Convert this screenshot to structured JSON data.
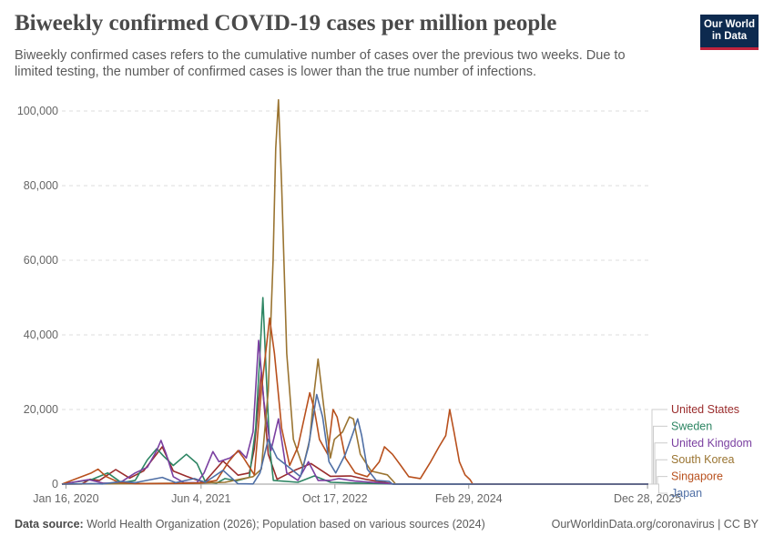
{
  "header": {
    "title": "Biweekly confirmed COVID-19 cases per million people",
    "subtitle": "Biweekly confirmed cases refers to the cumulative number of cases over the previous two weeks. Due to limited testing, the number of confirmed cases is lower than the true number of infections.",
    "logo_line1": "Our World",
    "logo_line2": "in Data"
  },
  "footer": {
    "source_label": "Data source:",
    "source_text": "World Health Organization (2026); Population based on various sources (2024)",
    "right_text": "OurWorldinData.org/coronavirus | CC BY"
  },
  "chart_data": {
    "type": "line",
    "title": "Biweekly confirmed COVID-19 cases per million people",
    "ylim": [
      0,
      100000
    ],
    "y_ticks": [
      0,
      20000,
      40000,
      60000,
      80000,
      100000
    ],
    "y_tick_labels": [
      "0",
      "20,000",
      "40,000",
      "60,000",
      "80,000",
      "100,000"
    ],
    "xlim": [
      "2020-01-01",
      "2025-12-31"
    ],
    "x_ticks": [
      "2020-01-16",
      "2021-06-04",
      "2022-10-17",
      "2024-02-29",
      "2025-12-28"
    ],
    "x_tick_labels": [
      "Jan 16, 2020",
      "Jun 4, 2021",
      "Oct 17, 2022",
      "Feb 29, 2024",
      "Dec 28, 2025"
    ],
    "grid": "horizontal-dashed",
    "legend_placement": "right",
    "series": [
      {
        "name": "United States",
        "color": "#9a2c2c",
        "points": [
          [
            "2020-01-01",
            0
          ],
          [
            "2020-03-15",
            50
          ],
          [
            "2020-04-15",
            1300
          ],
          [
            "2020-05-20",
            1000
          ],
          [
            "2020-07-20",
            3900
          ],
          [
            "2020-09-10",
            1600
          ],
          [
            "2020-11-01",
            3500
          ],
          [
            "2021-01-10",
            10000
          ],
          [
            "2021-02-20",
            3500
          ],
          [
            "2021-04-10",
            2100
          ],
          [
            "2021-06-15",
            400
          ],
          [
            "2021-08-25",
            6200
          ],
          [
            "2021-10-20",
            2400
          ],
          [
            "2021-12-01",
            3000
          ],
          [
            "2021-12-20",
            9500
          ],
          [
            "2022-01-15",
            30000
          ],
          [
            "2022-02-10",
            8000
          ],
          [
            "2022-03-15",
            1300
          ],
          [
            "2022-05-20",
            3700
          ],
          [
            "2022-07-20",
            5500
          ],
          [
            "2022-09-30",
            2100
          ],
          [
            "2022-12-15",
            2200
          ],
          [
            "2023-02-15",
            1200
          ],
          [
            "2023-05-10",
            200
          ],
          [
            "2023-05-24",
            0
          ],
          [
            "2025-12-31",
            0
          ]
        ]
      },
      {
        "name": "Sweden",
        "color": "#2d8563",
        "points": [
          [
            "2020-01-01",
            0
          ],
          [
            "2020-04-20",
            1200
          ],
          [
            "2020-06-20",
            3000
          ],
          [
            "2020-08-10",
            400
          ],
          [
            "2020-10-01",
            1000
          ],
          [
            "2020-11-15",
            6500
          ],
          [
            "2020-12-20",
            9500
          ],
          [
            "2021-01-15",
            7500
          ],
          [
            "2021-02-20",
            5000
          ],
          [
            "2021-04-10",
            8000
          ],
          [
            "2021-05-20",
            5500
          ],
          [
            "2021-06-20",
            600
          ],
          [
            "2021-08-01",
            300
          ],
          [
            "2021-09-01",
            1500
          ],
          [
            "2021-10-15",
            900
          ],
          [
            "2021-12-01",
            1800
          ],
          [
            "2021-12-25",
            15000
          ],
          [
            "2022-01-10",
            35000
          ],
          [
            "2022-01-21",
            50000
          ],
          [
            "2022-02-05",
            25000
          ],
          [
            "2022-02-15",
            10000
          ],
          [
            "2022-03-01",
            1000
          ],
          [
            "2022-06-01",
            500
          ],
          [
            "2022-08-01",
            2200
          ],
          [
            "2022-10-01",
            500
          ],
          [
            "2023-01-01",
            300
          ],
          [
            "2023-06-01",
            0
          ],
          [
            "2025-12-31",
            0
          ]
        ]
      },
      {
        "name": "United Kingdom",
        "color": "#7a3fa0",
        "points": [
          [
            "2020-01-01",
            0
          ],
          [
            "2020-04-10",
            1200
          ],
          [
            "2020-06-01",
            300
          ],
          [
            "2020-08-01",
            200
          ],
          [
            "2020-10-01",
            3000
          ],
          [
            "2020-11-15",
            4500
          ],
          [
            "2020-12-20",
            9000
          ],
          [
            "2021-01-05",
            11700
          ],
          [
            "2021-01-25",
            8000
          ],
          [
            "2021-02-20",
            2000
          ],
          [
            "2021-04-01",
            400
          ],
          [
            "2021-05-20",
            400
          ],
          [
            "2021-06-15",
            3000
          ],
          [
            "2021-07-18",
            8700
          ],
          [
            "2021-08-10",
            6000
          ],
          [
            "2021-09-20",
            7000
          ],
          [
            "2021-10-25",
            9000
          ],
          [
            "2021-11-20",
            7000
          ],
          [
            "2021-12-15",
            14000
          ],
          [
            "2022-01-05",
            38500
          ],
          [
            "2022-01-25",
            22000
          ],
          [
            "2022-02-20",
            9000
          ],
          [
            "2022-03-20",
            17500
          ],
          [
            "2022-04-20",
            3000
          ],
          [
            "2022-06-01",
            1000
          ],
          [
            "2022-07-10",
            6000
          ],
          [
            "2022-08-15",
            1000
          ],
          [
            "2022-09-30",
            1000
          ],
          [
            "2022-11-01",
            1500
          ],
          [
            "2023-01-01",
            800
          ],
          [
            "2023-06-01",
            0
          ],
          [
            "2025-12-31",
            0
          ]
        ]
      },
      {
        "name": "South Korea",
        "color": "#9a7431",
        "points": [
          [
            "2020-01-01",
            0
          ],
          [
            "2021-01-01",
            200
          ],
          [
            "2021-06-01",
            300
          ],
          [
            "2021-09-01",
            500
          ],
          [
            "2021-12-15",
            2000
          ],
          [
            "2022-01-15",
            4000
          ],
          [
            "2022-02-10",
            25000
          ],
          [
            "2022-02-28",
            60000
          ],
          [
            "2022-03-10",
            90000
          ],
          [
            "2022-03-20",
            103000
          ],
          [
            "2022-04-01",
            80000
          ],
          [
            "2022-04-20",
            35000
          ],
          [
            "2022-05-15",
            12000
          ],
          [
            "2022-06-20",
            4500
          ],
          [
            "2022-07-15",
            12000
          ],
          [
            "2022-08-01",
            25000
          ],
          [
            "2022-08-15",
            33500
          ],
          [
            "2022-09-10",
            18000
          ],
          [
            "2022-09-30",
            7000
          ],
          [
            "2022-10-15",
            12000
          ],
          [
            "2022-11-15",
            14000
          ],
          [
            "2022-12-10",
            18000
          ],
          [
            "2022-12-25",
            17500
          ],
          [
            "2023-01-20",
            8000
          ],
          [
            "2023-03-01",
            3500
          ],
          [
            "2023-05-01",
            2500
          ],
          [
            "2023-05-20",
            1000
          ],
          [
            "2023-06-01",
            0
          ],
          [
            "2025-12-31",
            0
          ]
        ]
      },
      {
        "name": "Singapore",
        "color": "#b8501d",
        "points": [
          [
            "2020-01-01",
            0
          ],
          [
            "2020-04-20",
            3000
          ],
          [
            "2020-05-15",
            4000
          ],
          [
            "2020-06-15",
            2000
          ],
          [
            "2020-08-01",
            500
          ],
          [
            "2020-10-01",
            100
          ],
          [
            "2021-04-01",
            200
          ],
          [
            "2021-06-01",
            300
          ],
          [
            "2021-08-01",
            1000
          ],
          [
            "2021-09-15",
            6000
          ],
          [
            "2021-10-20",
            9000
          ],
          [
            "2021-11-10",
            7000
          ],
          [
            "2021-12-20",
            2500
          ],
          [
            "2022-01-15",
            25000
          ],
          [
            "2022-02-15",
            44500
          ],
          [
            "2022-03-05",
            35000
          ],
          [
            "2022-04-01",
            15000
          ],
          [
            "2022-05-01",
            5000
          ],
          [
            "2022-06-01",
            10000
          ],
          [
            "2022-07-15",
            24500
          ],
          [
            "2022-08-01",
            20000
          ],
          [
            "2022-08-20",
            12000
          ],
          [
            "2022-09-20",
            8000
          ],
          [
            "2022-10-10",
            20000
          ],
          [
            "2022-10-25",
            18000
          ],
          [
            "2022-11-25",
            7000
          ],
          [
            "2023-01-01",
            3000
          ],
          [
            "2023-02-15",
            2000
          ],
          [
            "2023-04-01",
            6000
          ],
          [
            "2023-04-20",
            10000
          ],
          [
            "2023-05-20",
            8000
          ],
          [
            "2023-06-20",
            5000
          ],
          [
            "2023-07-20",
            2000
          ],
          [
            "2023-09-01",
            1500
          ],
          [
            "2023-10-10",
            6000
          ],
          [
            "2023-11-10",
            10000
          ],
          [
            "2023-12-05",
            13000
          ],
          [
            "2023-12-20",
            20000
          ],
          [
            "2024-01-05",
            14000
          ],
          [
            "2024-01-25",
            6000
          ],
          [
            "2024-02-15",
            2500
          ],
          [
            "2024-03-05",
            1200
          ],
          [
            "2024-03-15",
            0
          ],
          [
            "2025-12-31",
            0
          ]
        ]
      },
      {
        "name": "Japan",
        "color": "#4f6fa5",
        "points": [
          [
            "2020-01-01",
            0
          ],
          [
            "2020-04-20",
            150
          ],
          [
            "2020-06-01",
            50
          ],
          [
            "2020-08-10",
            700
          ],
          [
            "2020-10-01",
            400
          ],
          [
            "2021-01-10",
            1800
          ],
          [
            "2021-03-01",
            400
          ],
          [
            "2021-05-10",
            1500
          ],
          [
            "2021-06-20",
            500
          ],
          [
            "2021-08-25",
            3700
          ],
          [
            "2021-10-20",
            100
          ],
          [
            "2021-12-15",
            50
          ],
          [
            "2022-01-10",
            3000
          ],
          [
            "2022-02-10",
            12000
          ],
          [
            "2022-03-15",
            7000
          ],
          [
            "2022-04-20",
            5000
          ],
          [
            "2022-06-10",
            2000
          ],
          [
            "2022-07-10",
            10000
          ],
          [
            "2022-08-10",
            24000
          ],
          [
            "2022-09-01",
            18000
          ],
          [
            "2022-09-25",
            6000
          ],
          [
            "2022-10-20",
            3000
          ],
          [
            "2022-11-25",
            8000
          ],
          [
            "2022-12-25",
            14000
          ],
          [
            "2023-01-10",
            17500
          ],
          [
            "2023-01-25",
            13000
          ],
          [
            "2023-02-15",
            4000
          ],
          [
            "2023-03-20",
            1000
          ],
          [
            "2023-05-08",
            700
          ],
          [
            "2023-05-20",
            0
          ],
          [
            "2025-12-31",
            0
          ]
        ]
      }
    ],
    "legend": [
      {
        "name": "United States",
        "color": "#9a2c2c"
      },
      {
        "name": "Sweden",
        "color": "#2d8563"
      },
      {
        "name": "United Kingdom",
        "color": "#7a3fa0"
      },
      {
        "name": "South Korea",
        "color": "#9a7431"
      },
      {
        "name": "Singapore",
        "color": "#b8501d"
      },
      {
        "name": "Japan",
        "color": "#4f6fa5"
      }
    ]
  }
}
